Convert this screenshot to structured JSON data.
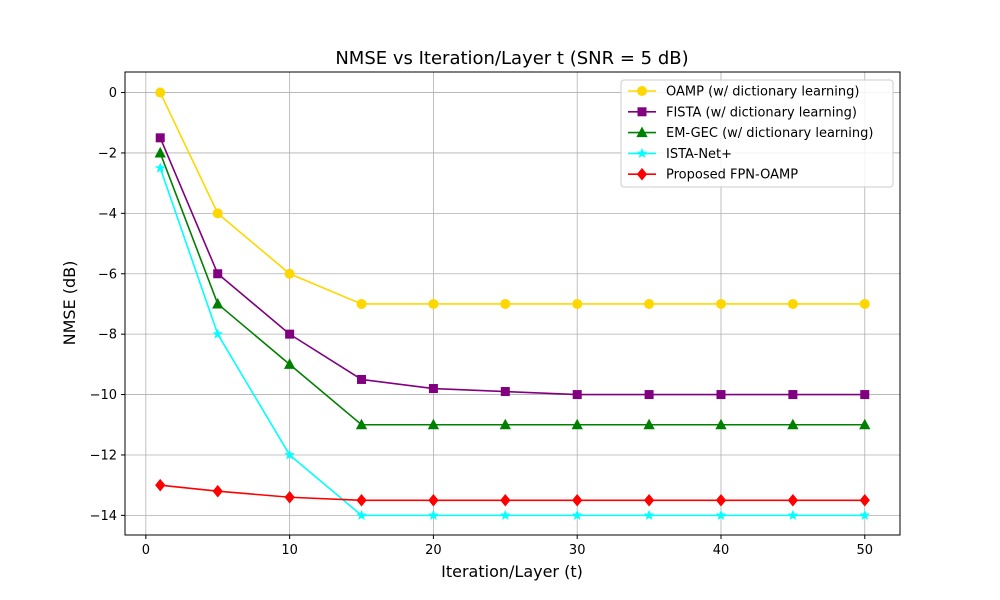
{
  "chart_data": {
    "type": "line",
    "title": "NMSE vs Iteration/Layer t (SNR = 5 dB)",
    "xlabel": "Iteration/Layer (t)",
    "ylabel": "NMSE (dB)",
    "xlim": [
      -1.45,
      52.45
    ],
    "ylim": [
      -14.65,
      0.68
    ],
    "xticks": [
      0,
      10,
      20,
      30,
      40,
      50
    ],
    "yticks": [
      0,
      -2,
      -4,
      -6,
      -8,
      -10,
      -12,
      -14
    ],
    "ytick_labels": [
      "0",
      "−2",
      "−4",
      "−6",
      "−8",
      "−10",
      "−12",
      "−14"
    ],
    "grid": true,
    "legend_position": "upper-right",
    "x": [
      1,
      5,
      10,
      15,
      20,
      25,
      30,
      35,
      40,
      45,
      50
    ],
    "series": [
      {
        "name": "OAMP (w/ dictionary learning)",
        "color": "#ffd700",
        "marker": "circle",
        "values": [
          0,
          -4,
          -6,
          -7,
          -7,
          -7,
          -7,
          -7,
          -7,
          -7,
          -7
        ]
      },
      {
        "name": "FISTA (w/ dictionary learning)",
        "color": "#800080",
        "marker": "square",
        "values": [
          -1.5,
          -6,
          -8,
          -9.5,
          -9.8,
          -9.9,
          -10,
          -10,
          -10,
          -10,
          -10
        ]
      },
      {
        "name": "EM-GEC (w/ dictionary learning)",
        "color": "#008000",
        "marker": "triangle",
        "values": [
          -2,
          -7,
          -9,
          -11,
          -11,
          -11,
          -11,
          -11,
          -11,
          -11,
          -11
        ]
      },
      {
        "name": "ISTA-Net+",
        "color": "#00ffff",
        "marker": "star",
        "values": [
          -2.5,
          -8,
          -12,
          -14,
          -14,
          -14,
          -14,
          -14,
          -14,
          -14,
          -14
        ]
      },
      {
        "name": "Proposed FPN-OAMP",
        "color": "#ff0000",
        "marker": "diamond",
        "values": [
          -13,
          -13.2,
          -13.4,
          -13.5,
          -13.5,
          -13.5,
          -13.5,
          -13.5,
          -13.5,
          -13.5,
          -13.5
        ]
      }
    ]
  }
}
